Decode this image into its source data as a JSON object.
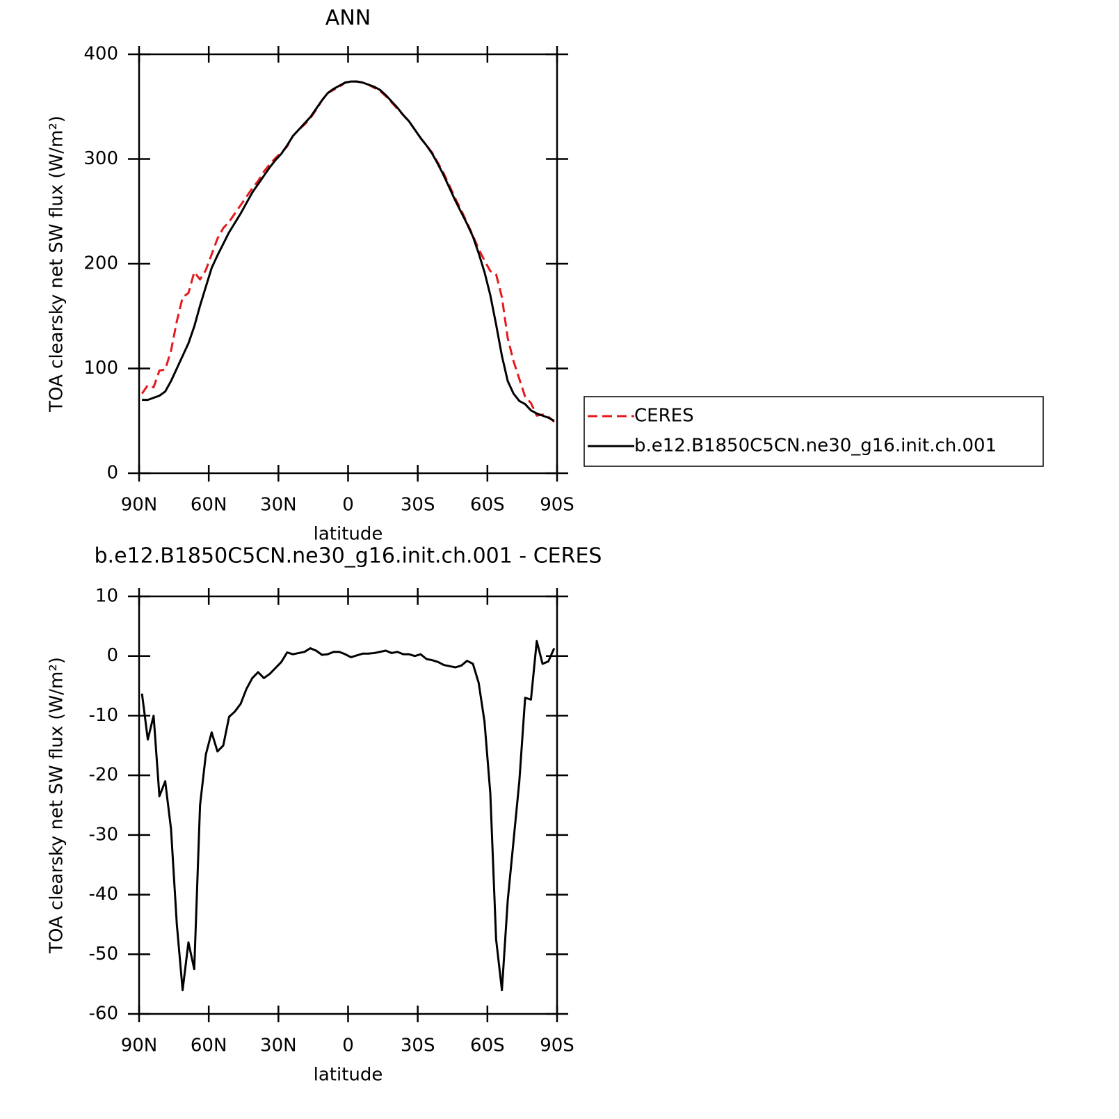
{
  "chart_data": [
    {
      "type": "line",
      "title": "ANN",
      "xlabel": "latitude",
      "ylabel": "TOA clearsky net SW flux (W/m²)",
      "xlim": [
        90,
        -90
      ],
      "ylim": [
        0,
        400
      ],
      "xticks": [
        {
          "value": 90,
          "label": "90N"
        },
        {
          "value": 60,
          "label": "60N"
        },
        {
          "value": 30,
          "label": "30N"
        },
        0,
        {
          "value": -30,
          "label": "30S"
        },
        {
          "value": -60,
          "label": "60S"
        },
        {
          "value": -90,
          "label": "90S"
        }
      ],
      "yticks": [
        0,
        100,
        200,
        300,
        400
      ],
      "legend": "right",
      "x": [
        88.75,
        86.25,
        83.75,
        81.25,
        78.75,
        76.25,
        73.75,
        71.25,
        68.75,
        66.25,
        63.75,
        61.25,
        58.75,
        56.25,
        53.75,
        51.25,
        48.75,
        46.25,
        43.75,
        41.25,
        38.75,
        36.25,
        33.75,
        31.25,
        28.75,
        26.25,
        23.75,
        21.25,
        18.75,
        16.25,
        13.75,
        11.25,
        8.75,
        6.25,
        3.75,
        1.25,
        -1.25,
        -3.75,
        -6.25,
        -8.75,
        -11.25,
        -13.75,
        -16.25,
        -18.75,
        -21.25,
        -23.75,
        -26.25,
        -28.75,
        -31.25,
        -33.75,
        -36.25,
        -38.75,
        -41.25,
        -43.75,
        -46.25,
        -48.75,
        -51.25,
        -53.75,
        -56.25,
        -58.75,
        -61.25,
        -63.75,
        -66.25,
        -68.75,
        -71.25,
        -73.75,
        -76.25,
        -78.75,
        -81.25,
        -83.75,
        -86.25,
        -88.75
      ],
      "series": [
        {
          "name": "CERES",
          "color": "#e41a1c",
          "dash": true,
          "values": [
            76,
            84,
            82,
            98,
            99,
            117,
            145,
            168,
            172,
            192,
            185,
            194,
            209,
            224,
            234,
            240,
            248,
            256,
            264,
            272,
            279,
            288,
            295,
            301,
            306,
            312,
            322,
            328,
            333,
            339,
            347,
            356,
            363,
            366,
            369,
            373,
            374,
            374,
            373,
            371,
            368,
            365,
            360,
            354,
            348,
            342,
            336,
            328,
            320,
            313,
            306,
            296,
            286,
            274,
            262,
            251,
            239,
            227,
            214,
            203,
            193,
            190,
            168,
            129,
            107,
            90,
            73,
            67,
            55,
            56,
            54,
            49
          ]
        },
        {
          "name": "b.e12.B1850C5CN.ne30_g16.init.ch.001",
          "color": "#000000",
          "dash": false,
          "values": [
            70,
            70,
            72,
            74,
            78,
            88,
            100,
            112,
            124,
            140,
            160,
            178,
            196,
            208,
            219,
            230,
            239,
            248,
            258,
            268,
            276,
            284,
            292,
            299,
            305,
            313,
            322,
            328,
            334,
            340,
            348,
            356,
            363,
            367,
            370,
            373,
            374,
            374,
            373,
            371,
            369,
            366,
            361,
            355,
            349,
            342,
            336,
            328,
            320,
            313,
            305,
            295,
            284,
            272,
            260,
            249,
            238,
            226,
            210,
            192,
            170,
            142,
            112,
            88,
            76,
            69,
            66,
            60,
            57,
            55,
            53,
            50
          ]
        }
      ]
    },
    {
      "type": "line",
      "title": "b.e12.B1850C5CN.ne30_g16.init.ch.001 - CERES",
      "xlabel": "latitude",
      "ylabel": "TOA clearsky net SW flux (W/m²)",
      "xlim": [
        90,
        -90
      ],
      "ylim": [
        -60,
        10
      ],
      "xticks": [
        {
          "value": 90,
          "label": "90N"
        },
        {
          "value": 60,
          "label": "60N"
        },
        {
          "value": 30,
          "label": "30N"
        },
        0,
        {
          "value": -30,
          "label": "30S"
        },
        {
          "value": -60,
          "label": "60S"
        },
        {
          "value": -90,
          "label": "90S"
        }
      ],
      "yticks": [
        -60,
        -50,
        -40,
        -30,
        -20,
        -10,
        0,
        10
      ],
      "color": "#000000",
      "x": [
        88.75,
        86.25,
        83.75,
        81.25,
        78.75,
        76.25,
        73.75,
        71.25,
        68.75,
        66.25,
        63.75,
        61.25,
        58.75,
        56.25,
        53.75,
        51.25,
        48.75,
        46.25,
        43.75,
        41.25,
        38.75,
        36.25,
        33.75,
        31.25,
        28.75,
        26.25,
        23.75,
        21.25,
        18.75,
        16.25,
        13.75,
        11.25,
        8.75,
        6.25,
        3.75,
        1.25,
        -1.25,
        -3.75,
        -6.25,
        -8.75,
        -11.25,
        -13.75,
        -16.25,
        -18.75,
        -21.25,
        -23.75,
        -26.25,
        -28.75,
        -31.25,
        -33.75,
        -36.25,
        -38.75,
        -41.25,
        -43.75,
        -46.25,
        -48.75,
        -51.25,
        -53.75,
        -56.25,
        -58.75,
        -61.25,
        -63.75,
        -66.25,
        -68.75,
        -71.25,
        -73.75,
        -76.25,
        -78.75,
        -81.25,
        -83.75,
        -86.25,
        -88.75
      ],
      "values": [
        -6.3,
        -14,
        -10,
        -23.5,
        -21,
        -29,
        -45,
        -56,
        -48,
        -52.5,
        -25,
        -16.5,
        -12.8,
        -16,
        -15,
        -10.2,
        -9.3,
        -8,
        -5.5,
        -3.7,
        -2.7,
        -3.7,
        -3,
        -2,
        -1,
        0.6,
        0.3,
        0.5,
        0.7,
        1.3,
        0.9,
        0.2,
        0.3,
        0.7,
        0.7,
        0.3,
        -0.2,
        0.1,
        0.4,
        0.4,
        0.5,
        0.7,
        0.9,
        0.5,
        0.7,
        0.3,
        0.3,
        0,
        0.3,
        -0.5,
        -0.7,
        -1,
        -1.5,
        -1.7,
        -1.9,
        -1.6,
        -0.8,
        -1.3,
        -4.5,
        -11,
        -23,
        -47.5,
        -56,
        -41,
        -31,
        -21,
        -7,
        -7.3,
        2.5,
        -1.3,
        -0.9,
        1.3
      ]
    }
  ]
}
